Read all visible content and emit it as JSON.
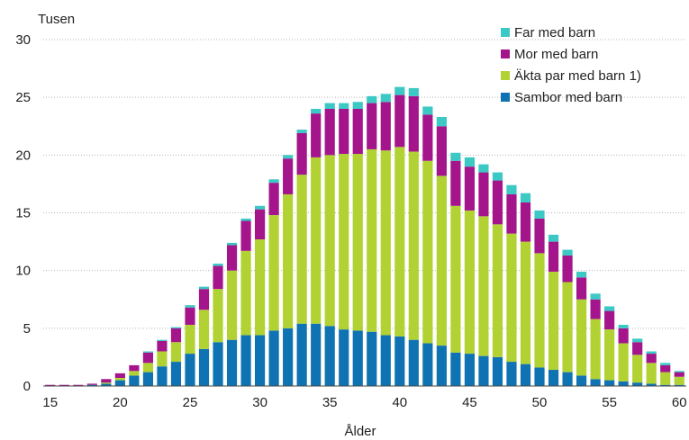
{
  "chart_data": {
    "type": "bar",
    "stacked": true,
    "y_unit_label": "Tusen",
    "xlabel": "Ålder",
    "x": [
      15,
      16,
      17,
      18,
      19,
      20,
      21,
      22,
      23,
      24,
      25,
      26,
      27,
      28,
      29,
      30,
      31,
      32,
      33,
      34,
      35,
      36,
      37,
      38,
      39,
      40,
      41,
      42,
      43,
      44,
      45,
      46,
      47,
      48,
      49,
      50,
      51,
      52,
      53,
      54,
      55,
      56,
      57,
      58,
      59,
      60
    ],
    "xticks": [
      15,
      20,
      25,
      30,
      35,
      40,
      45,
      50,
      55,
      60
    ],
    "ylim": [
      0,
      30
    ],
    "yticks": [
      0,
      5,
      10,
      15,
      20,
      25,
      30
    ],
    "grid": "horizontal dotted",
    "legend_position": "top-right",
    "series": [
      {
        "name": "Sambor med barn",
        "color": "#0f73b3",
        "values": [
          0,
          0,
          0,
          0.1,
          0.2,
          0.5,
          0.9,
          1.2,
          1.7,
          2.1,
          2.8,
          3.2,
          3.8,
          4.0,
          4.4,
          4.4,
          4.8,
          5.0,
          5.4,
          5.4,
          5.2,
          4.9,
          4.8,
          4.7,
          4.4,
          4.3,
          4.0,
          3.7,
          3.5,
          2.9,
          2.8,
          2.6,
          2.5,
          2.1,
          1.9,
          1.6,
          1.4,
          1.2,
          0.9,
          0.6,
          0.5,
          0.4,
          0.3,
          0.2,
          0.1,
          0.1
        ]
      },
      {
        "name": "Äkta par med barn 1)",
        "color": "#b1d232",
        "values": [
          0,
          0,
          0,
          0,
          0.1,
          0.2,
          0.4,
          0.8,
          1.3,
          1.7,
          2.5,
          3.4,
          4.6,
          6.0,
          7.3,
          8.3,
          10.0,
          11.6,
          12.9,
          14.4,
          14.8,
          15.2,
          15.3,
          15.8,
          16.0,
          16.4,
          16.3,
          15.8,
          14.7,
          12.7,
          12.4,
          12.1,
          11.5,
          11.1,
          10.6,
          9.9,
          8.5,
          7.8,
          6.6,
          5.2,
          4.4,
          3.3,
          2.4,
          1.8,
          1.1,
          0.7
        ]
      },
      {
        "name": "Mor med barn",
        "color": "#a4158c",
        "values": [
          0.1,
          0.1,
          0.1,
          0.1,
          0.3,
          0.4,
          0.5,
          0.9,
          0.9,
          1.2,
          1.5,
          1.8,
          2.0,
          2.2,
          2.6,
          2.6,
          2.8,
          3.1,
          3.6,
          3.8,
          4.0,
          3.9,
          3.9,
          4.0,
          4.2,
          4.5,
          4.8,
          4.0,
          4.3,
          3.9,
          3.8,
          3.8,
          3.8,
          3.4,
          3.4,
          3.0,
          2.6,
          2.3,
          1.9,
          1.7,
          1.6,
          1.3,
          1.1,
          0.8,
          0.6,
          0.4
        ]
      },
      {
        "name": "Far med barn",
        "color": "#3cc8c4",
        "values": [
          0,
          0,
          0,
          0,
          0,
          0,
          0,
          0.1,
          0.1,
          0.1,
          0.2,
          0.2,
          0.2,
          0.2,
          0.2,
          0.3,
          0.3,
          0.3,
          0.3,
          0.4,
          0.5,
          0.5,
          0.6,
          0.6,
          0.7,
          0.7,
          0.7,
          0.7,
          0.8,
          0.7,
          0.8,
          0.7,
          0.7,
          0.8,
          0.8,
          0.7,
          0.6,
          0.5,
          0.5,
          0.5,
          0.4,
          0.3,
          0.3,
          0.2,
          0.2,
          0.1
        ]
      }
    ]
  }
}
